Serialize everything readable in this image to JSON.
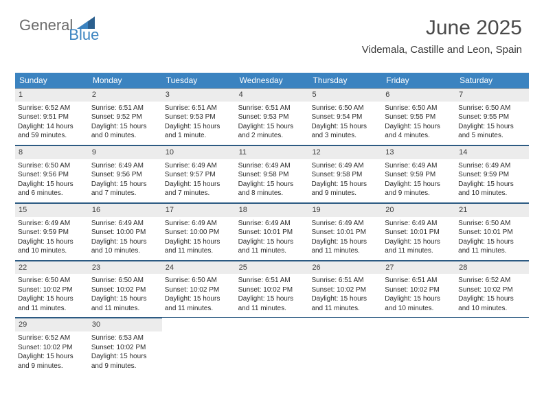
{
  "brand": {
    "part1": "General",
    "part2": "Blue"
  },
  "title": "June 2025",
  "location": "Videmala, Castille and Leon, Spain",
  "colors": {
    "header_bg": "#3b83c0",
    "header_text": "#ffffff",
    "rule": "#2c5a82",
    "daynum_bg": "#ececec",
    "page_bg": "#ffffff",
    "text": "#2a2a2a"
  },
  "dow": [
    "Sunday",
    "Monday",
    "Tuesday",
    "Wednesday",
    "Thursday",
    "Friday",
    "Saturday"
  ],
  "weeks": [
    [
      {
        "n": "1",
        "sr": "Sunrise: 6:52 AM",
        "ss": "Sunset: 9:51 PM",
        "dl": "Daylight: 14 hours and 59 minutes."
      },
      {
        "n": "2",
        "sr": "Sunrise: 6:51 AM",
        "ss": "Sunset: 9:52 PM",
        "dl": "Daylight: 15 hours and 0 minutes."
      },
      {
        "n": "3",
        "sr": "Sunrise: 6:51 AM",
        "ss": "Sunset: 9:53 PM",
        "dl": "Daylight: 15 hours and 1 minute."
      },
      {
        "n": "4",
        "sr": "Sunrise: 6:51 AM",
        "ss": "Sunset: 9:53 PM",
        "dl": "Daylight: 15 hours and 2 minutes."
      },
      {
        "n": "5",
        "sr": "Sunrise: 6:50 AM",
        "ss": "Sunset: 9:54 PM",
        "dl": "Daylight: 15 hours and 3 minutes."
      },
      {
        "n": "6",
        "sr": "Sunrise: 6:50 AM",
        "ss": "Sunset: 9:55 PM",
        "dl": "Daylight: 15 hours and 4 minutes."
      },
      {
        "n": "7",
        "sr": "Sunrise: 6:50 AM",
        "ss": "Sunset: 9:55 PM",
        "dl": "Daylight: 15 hours and 5 minutes."
      }
    ],
    [
      {
        "n": "8",
        "sr": "Sunrise: 6:50 AM",
        "ss": "Sunset: 9:56 PM",
        "dl": "Daylight: 15 hours and 6 minutes."
      },
      {
        "n": "9",
        "sr": "Sunrise: 6:49 AM",
        "ss": "Sunset: 9:56 PM",
        "dl": "Daylight: 15 hours and 7 minutes."
      },
      {
        "n": "10",
        "sr": "Sunrise: 6:49 AM",
        "ss": "Sunset: 9:57 PM",
        "dl": "Daylight: 15 hours and 7 minutes."
      },
      {
        "n": "11",
        "sr": "Sunrise: 6:49 AM",
        "ss": "Sunset: 9:58 PM",
        "dl": "Daylight: 15 hours and 8 minutes."
      },
      {
        "n": "12",
        "sr": "Sunrise: 6:49 AM",
        "ss": "Sunset: 9:58 PM",
        "dl": "Daylight: 15 hours and 9 minutes."
      },
      {
        "n": "13",
        "sr": "Sunrise: 6:49 AM",
        "ss": "Sunset: 9:59 PM",
        "dl": "Daylight: 15 hours and 9 minutes."
      },
      {
        "n": "14",
        "sr": "Sunrise: 6:49 AM",
        "ss": "Sunset: 9:59 PM",
        "dl": "Daylight: 15 hours and 10 minutes."
      }
    ],
    [
      {
        "n": "15",
        "sr": "Sunrise: 6:49 AM",
        "ss": "Sunset: 9:59 PM",
        "dl": "Daylight: 15 hours and 10 minutes."
      },
      {
        "n": "16",
        "sr": "Sunrise: 6:49 AM",
        "ss": "Sunset: 10:00 PM",
        "dl": "Daylight: 15 hours and 10 minutes."
      },
      {
        "n": "17",
        "sr": "Sunrise: 6:49 AM",
        "ss": "Sunset: 10:00 PM",
        "dl": "Daylight: 15 hours and 11 minutes."
      },
      {
        "n": "18",
        "sr": "Sunrise: 6:49 AM",
        "ss": "Sunset: 10:01 PM",
        "dl": "Daylight: 15 hours and 11 minutes."
      },
      {
        "n": "19",
        "sr": "Sunrise: 6:49 AM",
        "ss": "Sunset: 10:01 PM",
        "dl": "Daylight: 15 hours and 11 minutes."
      },
      {
        "n": "20",
        "sr": "Sunrise: 6:49 AM",
        "ss": "Sunset: 10:01 PM",
        "dl": "Daylight: 15 hours and 11 minutes."
      },
      {
        "n": "21",
        "sr": "Sunrise: 6:50 AM",
        "ss": "Sunset: 10:01 PM",
        "dl": "Daylight: 15 hours and 11 minutes."
      }
    ],
    [
      {
        "n": "22",
        "sr": "Sunrise: 6:50 AM",
        "ss": "Sunset: 10:02 PM",
        "dl": "Daylight: 15 hours and 11 minutes."
      },
      {
        "n": "23",
        "sr": "Sunrise: 6:50 AM",
        "ss": "Sunset: 10:02 PM",
        "dl": "Daylight: 15 hours and 11 minutes."
      },
      {
        "n": "24",
        "sr": "Sunrise: 6:50 AM",
        "ss": "Sunset: 10:02 PM",
        "dl": "Daylight: 15 hours and 11 minutes."
      },
      {
        "n": "25",
        "sr": "Sunrise: 6:51 AM",
        "ss": "Sunset: 10:02 PM",
        "dl": "Daylight: 15 hours and 11 minutes."
      },
      {
        "n": "26",
        "sr": "Sunrise: 6:51 AM",
        "ss": "Sunset: 10:02 PM",
        "dl": "Daylight: 15 hours and 11 minutes."
      },
      {
        "n": "27",
        "sr": "Sunrise: 6:51 AM",
        "ss": "Sunset: 10:02 PM",
        "dl": "Daylight: 15 hours and 10 minutes."
      },
      {
        "n": "28",
        "sr": "Sunrise: 6:52 AM",
        "ss": "Sunset: 10:02 PM",
        "dl": "Daylight: 15 hours and 10 minutes."
      }
    ],
    [
      {
        "n": "29",
        "sr": "Sunrise: 6:52 AM",
        "ss": "Sunset: 10:02 PM",
        "dl": "Daylight: 15 hours and 9 minutes."
      },
      {
        "n": "30",
        "sr": "Sunrise: 6:53 AM",
        "ss": "Sunset: 10:02 PM",
        "dl": "Daylight: 15 hours and 9 minutes."
      },
      {
        "n": "",
        "sr": "",
        "ss": "",
        "dl": "",
        "empty": true
      },
      {
        "n": "",
        "sr": "",
        "ss": "",
        "dl": "",
        "empty": true
      },
      {
        "n": "",
        "sr": "",
        "ss": "",
        "dl": "",
        "empty": true
      },
      {
        "n": "",
        "sr": "",
        "ss": "",
        "dl": "",
        "empty": true
      },
      {
        "n": "",
        "sr": "",
        "ss": "",
        "dl": "",
        "empty": true
      }
    ]
  ]
}
